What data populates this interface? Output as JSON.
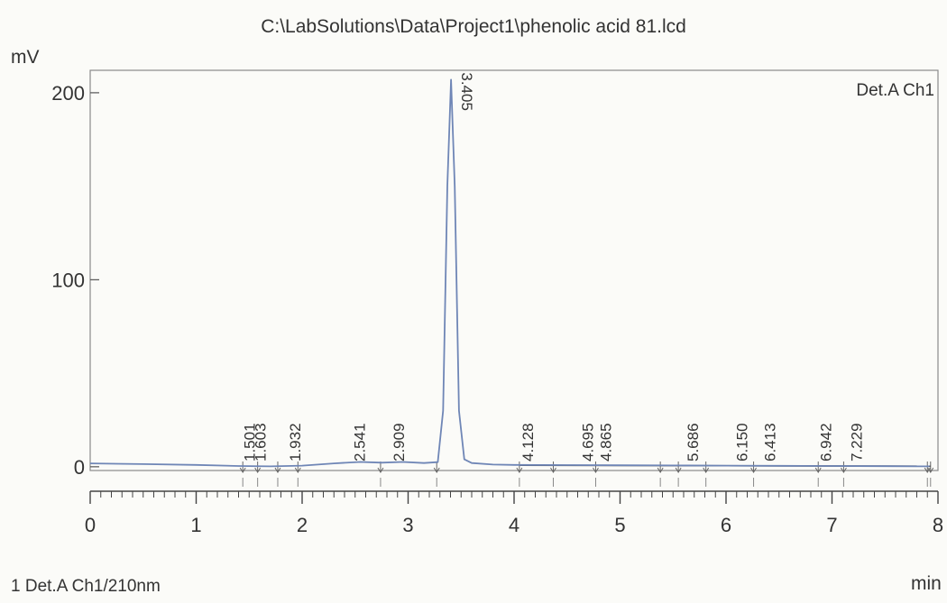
{
  "chart_data": {
    "type": "line",
    "title": "C:\\LabSolutions\\Data\\Project1\\phenolic acid 81.lcd",
    "ylabel": "mV",
    "xlabel": "min",
    "legend": "Det.A Ch1",
    "legend_position": "top-right",
    "footer": "1  Det.A Ch1/210nm",
    "xlim": [
      0,
      8
    ],
    "ylim": [
      -2,
      212
    ],
    "x_ticks": [
      "0",
      "1",
      "2",
      "3",
      "4",
      "5",
      "6",
      "7",
      "8"
    ],
    "y_ticks": [
      "0",
      "100",
      "200"
    ],
    "line_color": "#6f86b6",
    "series": [
      {
        "x": [
          0.0,
          0.5,
          1.0,
          1.4,
          1.7,
          2.0,
          2.3,
          2.55,
          2.75,
          2.95,
          3.15,
          3.28,
          3.33,
          3.37,
          3.405,
          3.44,
          3.48,
          3.53,
          3.6,
          3.8,
          4.0,
          4.5,
          5.0,
          5.5,
          6.0,
          6.5,
          7.0,
          7.5,
          7.92
        ],
        "y": [
          1.8,
          1.4,
          1.0,
          0.4,
          0.2,
          0.6,
          1.8,
          2.6,
          2.2,
          2.6,
          2.0,
          2.5,
          30,
          150,
          207,
          150,
          30,
          4.0,
          2.0,
          1.2,
          1.0,
          0.9,
          0.8,
          0.7,
          0.6,
          0.5,
          0.4,
          0.3,
          0.2
        ]
      }
    ],
    "peaks": [
      {
        "label": "1.501",
        "x": 1.501
      },
      {
        "label": "1.603",
        "x": 1.603
      },
      {
        "label": "1.932",
        "x": 1.932
      },
      {
        "label": "2.541",
        "x": 2.541
      },
      {
        "label": "2.909",
        "x": 2.909
      },
      {
        "label": "3.405",
        "x": 3.405,
        "y": 207
      },
      {
        "label": "4.128",
        "x": 4.128
      },
      {
        "label": "4.695",
        "x": 4.695
      },
      {
        "label": "4.865",
        "x": 4.865
      },
      {
        "label": "5.686",
        "x": 5.686
      },
      {
        "label": "6.150",
        "x": 6.15
      },
      {
        "label": "6.413",
        "x": 6.413
      },
      {
        "label": "6.942",
        "x": 6.942
      },
      {
        "label": "7.229",
        "x": 7.229
      }
    ],
    "integration_marks": [
      1.44,
      1.58,
      1.77,
      1.96,
      2.74,
      3.27,
      4.05,
      4.37,
      4.77,
      5.38,
      5.55,
      5.81,
      6.26,
      6.87,
      7.11,
      7.9,
      7.93
    ]
  }
}
